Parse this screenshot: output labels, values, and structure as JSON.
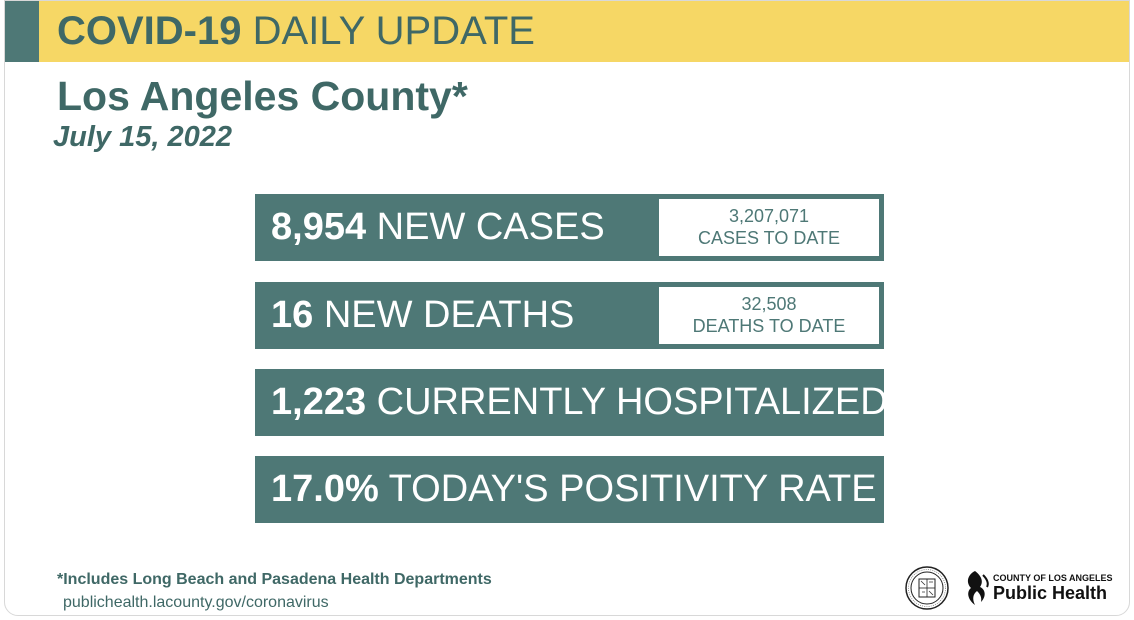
{
  "banner": {
    "title_bold": "COVID-19",
    "title_light": "DAILY UPDATE"
  },
  "county": "Los Angeles County*",
  "date": "July 15, 2022",
  "stats": [
    {
      "value": "8,954",
      "label": "NEW CASES",
      "todate_value": "3,207,071",
      "todate_label": "CASES TO DATE"
    },
    {
      "value": "16",
      "label": "NEW DEATHS",
      "todate_value": "32,508",
      "todate_label": "DEATHS TO DATE"
    },
    {
      "value": "1,223",
      "label": "CURRENTLY HOSPITALIZED"
    },
    {
      "value": "17.0%",
      "label": "TODAY'S POSITIVITY RATE"
    }
  ],
  "footer": {
    "note": "*Includes Long Beach and Pasadena Health Departments",
    "url": "publichealth.lacounty.gov/coronavirus"
  },
  "logo": {
    "small": "COUNTY OF LOS ANGELES",
    "big": "Public Health"
  },
  "colors": {
    "teal": "#4e7876",
    "yellow": "#f6d765"
  },
  "icons": [
    "county-seal-icon",
    "public-health-logo-icon"
  ]
}
